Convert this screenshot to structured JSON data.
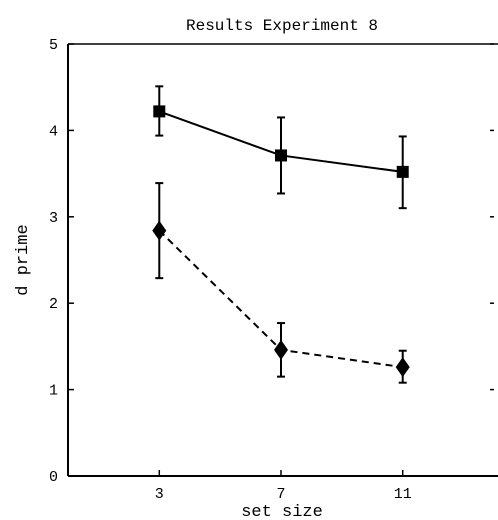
{
  "chart_data": {
    "type": "line",
    "title": "Results Experiment 8",
    "xlabel": "set size",
    "ylabel": "d prime",
    "x": [
      3,
      7,
      11
    ],
    "x_tick_labels": [
      "3",
      "7",
      "11"
    ],
    "xlim": [
      0,
      14
    ],
    "ylim": [
      0,
      5
    ],
    "y_ticks": [
      0,
      1,
      2,
      3,
      4,
      5
    ],
    "y_tick_labels": [
      "0",
      "1",
      "2",
      "3",
      "4",
      "5"
    ],
    "grid": false,
    "series": [
      {
        "marker": "square",
        "line_style": "solid",
        "values": [
          4.22,
          3.71,
          3.52
        ],
        "error_low": [
          3.94,
          3.27,
          3.1
        ],
        "error_high": [
          4.51,
          4.15,
          3.93
        ]
      },
      {
        "marker": "diamond",
        "line_style": "dashed",
        "values": [
          2.84,
          1.46,
          1.26
        ],
        "error_low": [
          2.29,
          1.15,
          1.08
        ],
        "error_high": [
          3.39,
          1.77,
          1.45
        ]
      }
    ]
  }
}
